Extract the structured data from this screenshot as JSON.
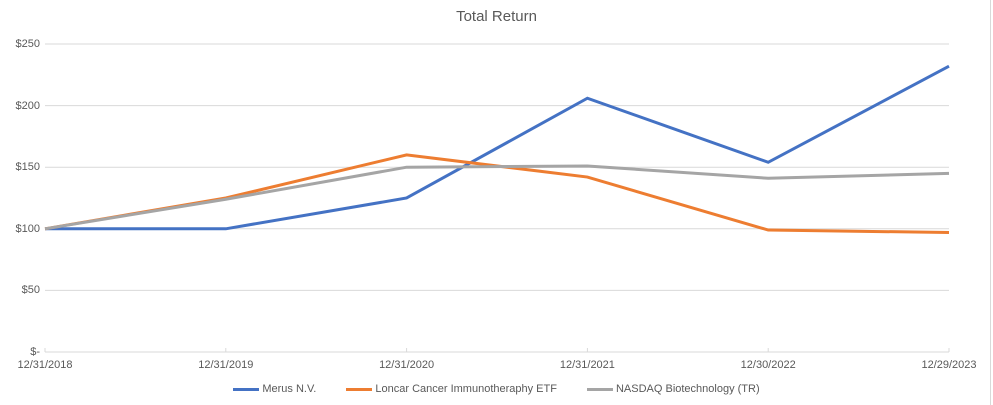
{
  "chart_data": {
    "type": "line",
    "title": "Total Return",
    "x": [
      "12/31/2018",
      "12/31/2019",
      "12/31/2020",
      "12/31/2021",
      "12/30/2022",
      "12/29/2023"
    ],
    "y_ticks": [
      250,
      200,
      150,
      100,
      50,
      0
    ],
    "y_tick_labels": [
      "$250",
      "$200",
      "$150",
      "$100",
      "$50",
      "$-"
    ],
    "ylim": [
      0,
      250
    ],
    "grid": true,
    "legend_position": "bottom",
    "series": [
      {
        "name": "Merus N.V.",
        "color": "#4472C4",
        "values": [
          100,
          100,
          125,
          206,
          154,
          232
        ]
      },
      {
        "name": "Loncar Cancer Immunotheraphy ETF",
        "color": "#ED7D31",
        "values": [
          100,
          125,
          160,
          142,
          99,
          97
        ]
      },
      {
        "name": "NASDAQ Biotechnology (TR)",
        "color": "#A5A5A5",
        "values": [
          100,
          124,
          150,
          151,
          141,
          145
        ]
      }
    ],
    "colors": {
      "grid": "#D9D9D9",
      "axis_text": "#595959",
      "title_text": "#595959"
    }
  }
}
